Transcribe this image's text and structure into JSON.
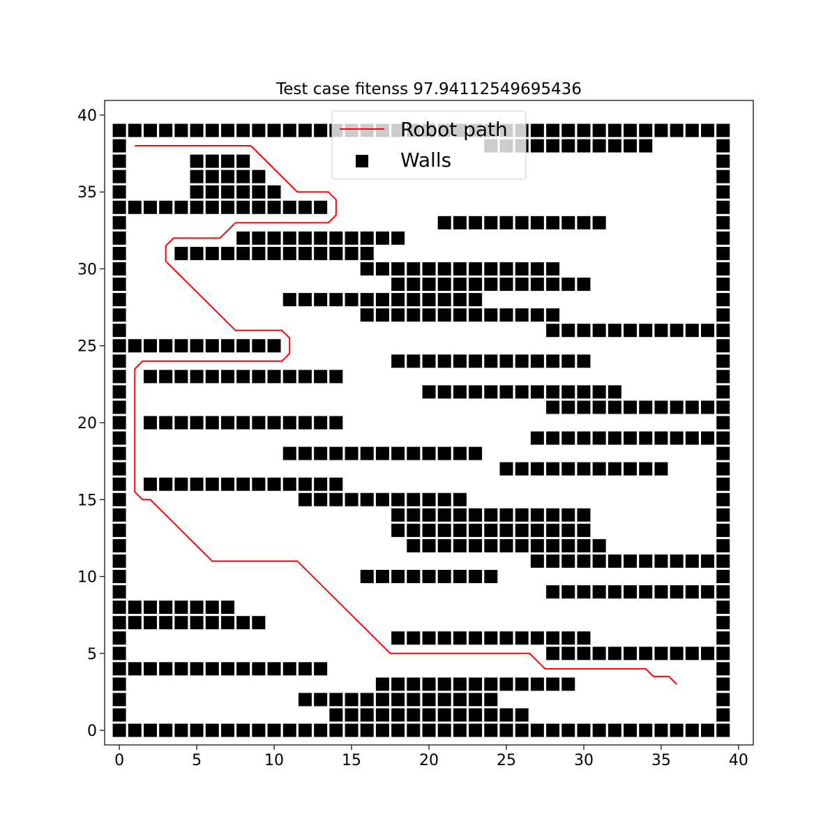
{
  "chart_data": {
    "type": "scatter",
    "title": "Test case fitenss 97.94112549695436",
    "xlabel": "",
    "ylabel": "",
    "xlim": [
      -0.95,
      40.95
    ],
    "ylim": [
      -0.95,
      40.95
    ],
    "xticks": [
      0,
      5,
      10,
      15,
      20,
      25,
      30,
      35,
      40
    ],
    "yticks": [
      0,
      5,
      10,
      15,
      20,
      25,
      30,
      35,
      40
    ],
    "grid": false,
    "legend": {
      "placement": "upper center",
      "entries": [
        "Robot path",
        "Walls"
      ]
    },
    "colors": {
      "path": "#ff0000",
      "walls": "#000000"
    },
    "series": [
      {
        "name": "Robot path",
        "kind": "line",
        "points": [
          [
            1,
            38
          ],
          [
            8.5,
            38
          ],
          [
            11.5,
            35
          ],
          [
            13.5,
            35
          ],
          [
            14,
            34.5
          ],
          [
            14,
            33.5
          ],
          [
            13.5,
            33
          ],
          [
            7.5,
            33
          ],
          [
            6.5,
            32
          ],
          [
            3.5,
            32
          ],
          [
            3,
            31.5
          ],
          [
            3,
            30.5
          ],
          [
            7.5,
            26
          ],
          [
            10.5,
            26
          ],
          [
            11,
            25.5
          ],
          [
            11,
            24.5
          ],
          [
            10.5,
            24
          ],
          [
            1.5,
            24
          ],
          [
            1,
            23.5
          ],
          [
            1,
            15.5
          ],
          [
            1.5,
            15
          ],
          [
            2,
            15
          ],
          [
            6,
            11
          ],
          [
            11.5,
            11
          ],
          [
            17.5,
            5
          ],
          [
            26.5,
            5
          ],
          [
            27.5,
            4
          ],
          [
            34,
            4
          ],
          [
            34.5,
            3.5
          ],
          [
            35.5,
            3.5
          ],
          [
            36,
            3
          ]
        ]
      },
      {
        "name": "Walls",
        "kind": "markers",
        "rows": [
          {
            "y": 39,
            "spans": [
              [
                0,
                39
              ]
            ]
          },
          {
            "y": 38,
            "spans": [
              [
                0,
                0
              ],
              [
                24,
                34
              ],
              [
                39,
                39
              ]
            ]
          },
          {
            "y": 37,
            "spans": [
              [
                0,
                0
              ],
              [
                5,
                8
              ],
              [
                39,
                39
              ]
            ]
          },
          {
            "y": 36,
            "spans": [
              [
                0,
                0
              ],
              [
                5,
                9
              ],
              [
                39,
                39
              ]
            ]
          },
          {
            "y": 35,
            "spans": [
              [
                0,
                0
              ],
              [
                5,
                10
              ],
              [
                39,
                39
              ]
            ]
          },
          {
            "y": 34,
            "spans": [
              [
                0,
                13
              ],
              [
                39,
                39
              ]
            ]
          },
          {
            "y": 33,
            "spans": [
              [
                0,
                0
              ],
              [
                21,
                31
              ],
              [
                39,
                39
              ]
            ]
          },
          {
            "y": 32,
            "spans": [
              [
                0,
                0
              ],
              [
                8,
                18
              ],
              [
                39,
                39
              ]
            ]
          },
          {
            "y": 31,
            "spans": [
              [
                0,
                0
              ],
              [
                4,
                16
              ],
              [
                39,
                39
              ]
            ]
          },
          {
            "y": 30,
            "spans": [
              [
                0,
                0
              ],
              [
                16,
                28
              ],
              [
                39,
                39
              ]
            ]
          },
          {
            "y": 29,
            "spans": [
              [
                0,
                0
              ],
              [
                18,
                30
              ],
              [
                39,
                39
              ]
            ]
          },
          {
            "y": 28,
            "spans": [
              [
                0,
                0
              ],
              [
                11,
                23
              ],
              [
                39,
                39
              ]
            ]
          },
          {
            "y": 27,
            "spans": [
              [
                0,
                0
              ],
              [
                16,
                28
              ],
              [
                39,
                39
              ]
            ]
          },
          {
            "y": 26,
            "spans": [
              [
                0,
                0
              ],
              [
                28,
                39
              ]
            ]
          },
          {
            "y": 25,
            "spans": [
              [
                0,
                10
              ],
              [
                39,
                39
              ]
            ]
          },
          {
            "y": 24,
            "spans": [
              [
                0,
                0
              ],
              [
                18,
                30
              ],
              [
                39,
                39
              ]
            ]
          },
          {
            "y": 23,
            "spans": [
              [
                0,
                0
              ],
              [
                2,
                14
              ],
              [
                39,
                39
              ]
            ]
          },
          {
            "y": 22,
            "spans": [
              [
                0,
                0
              ],
              [
                20,
                32
              ],
              [
                39,
                39
              ]
            ]
          },
          {
            "y": 21,
            "spans": [
              [
                0,
                0
              ],
              [
                28,
                39
              ]
            ]
          },
          {
            "y": 20,
            "spans": [
              [
                0,
                0
              ],
              [
                2,
                14
              ],
              [
                39,
                39
              ]
            ]
          },
          {
            "y": 19,
            "spans": [
              [
                0,
                0
              ],
              [
                27,
                39
              ]
            ]
          },
          {
            "y": 18,
            "spans": [
              [
                0,
                0
              ],
              [
                11,
                23
              ],
              [
                39,
                39
              ]
            ]
          },
          {
            "y": 17,
            "spans": [
              [
                0,
                0
              ],
              [
                25,
                35
              ],
              [
                39,
                39
              ]
            ]
          },
          {
            "y": 16,
            "spans": [
              [
                0,
                0
              ],
              [
                2,
                14
              ],
              [
                39,
                39
              ]
            ]
          },
          {
            "y": 15,
            "spans": [
              [
                0,
                0
              ],
              [
                12,
                22
              ],
              [
                39,
                39
              ]
            ]
          },
          {
            "y": 14,
            "spans": [
              [
                0,
                0
              ],
              [
                18,
                30
              ],
              [
                39,
                39
              ]
            ]
          },
          {
            "y": 13,
            "spans": [
              [
                0,
                0
              ],
              [
                18,
                30
              ],
              [
                39,
                39
              ]
            ]
          },
          {
            "y": 12,
            "spans": [
              [
                0,
                0
              ],
              [
                19,
                31
              ],
              [
                39,
                39
              ]
            ]
          },
          {
            "y": 11,
            "spans": [
              [
                0,
                0
              ],
              [
                27,
                39
              ]
            ]
          },
          {
            "y": 10,
            "spans": [
              [
                0,
                0
              ],
              [
                16,
                24
              ],
              [
                39,
                39
              ]
            ]
          },
          {
            "y": 9,
            "spans": [
              [
                0,
                0
              ],
              [
                28,
                39
              ]
            ]
          },
          {
            "y": 8,
            "spans": [
              [
                0,
                7
              ],
              [
                39,
                39
              ]
            ]
          },
          {
            "y": 7,
            "spans": [
              [
                0,
                9
              ],
              [
                39,
                39
              ]
            ]
          },
          {
            "y": 6,
            "spans": [
              [
                0,
                0
              ],
              [
                18,
                30
              ],
              [
                39,
                39
              ]
            ]
          },
          {
            "y": 5,
            "spans": [
              [
                0,
                0
              ],
              [
                28,
                39
              ]
            ]
          },
          {
            "y": 4,
            "spans": [
              [
                0,
                13
              ],
              [
                39,
                39
              ]
            ]
          },
          {
            "y": 3,
            "spans": [
              [
                0,
                0
              ],
              [
                17,
                29
              ],
              [
                39,
                39
              ]
            ]
          },
          {
            "y": 2,
            "spans": [
              [
                0,
                0
              ],
              [
                12,
                24
              ],
              [
                39,
                39
              ]
            ]
          },
          {
            "y": 1,
            "spans": [
              [
                0,
                0
              ],
              [
                14,
                26
              ],
              [
                39,
                39
              ]
            ]
          },
          {
            "y": 0,
            "spans": [
              [
                0,
                39
              ]
            ]
          }
        ]
      }
    ]
  }
}
